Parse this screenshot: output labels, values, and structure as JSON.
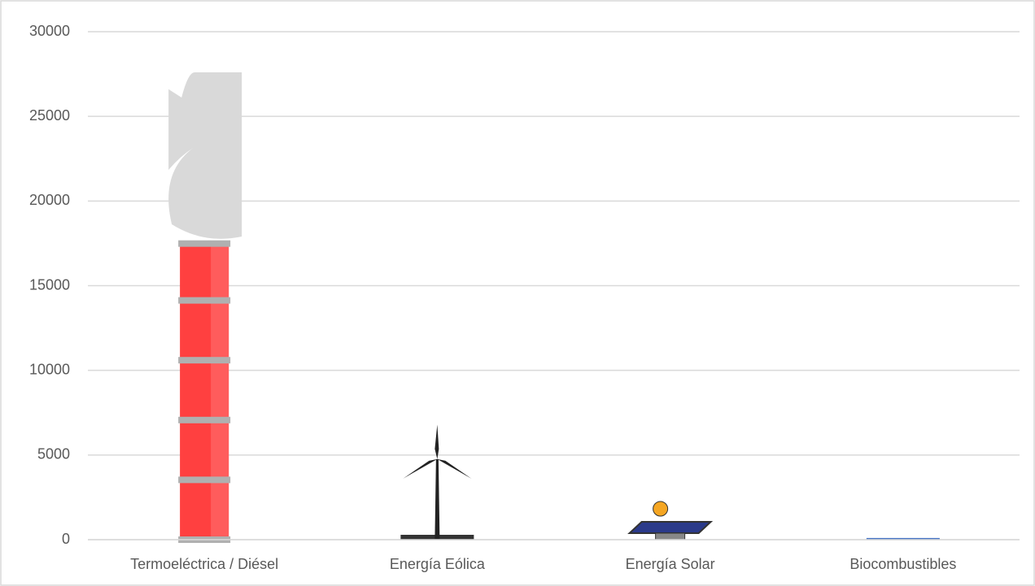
{
  "chart_data": {
    "type": "pictograph",
    "categories": [
      "Termoeléctrica / Diésel",
      "Energía Eólica",
      "Energía Solar",
      "Biocombustibles"
    ],
    "values": [
      27600,
      6800,
      2400,
      100
    ],
    "ylim": [
      0,
      30000
    ],
    "yticks": [
      0,
      5000,
      10000,
      15000,
      20000,
      25000,
      30000
    ],
    "grid": true
  }
}
